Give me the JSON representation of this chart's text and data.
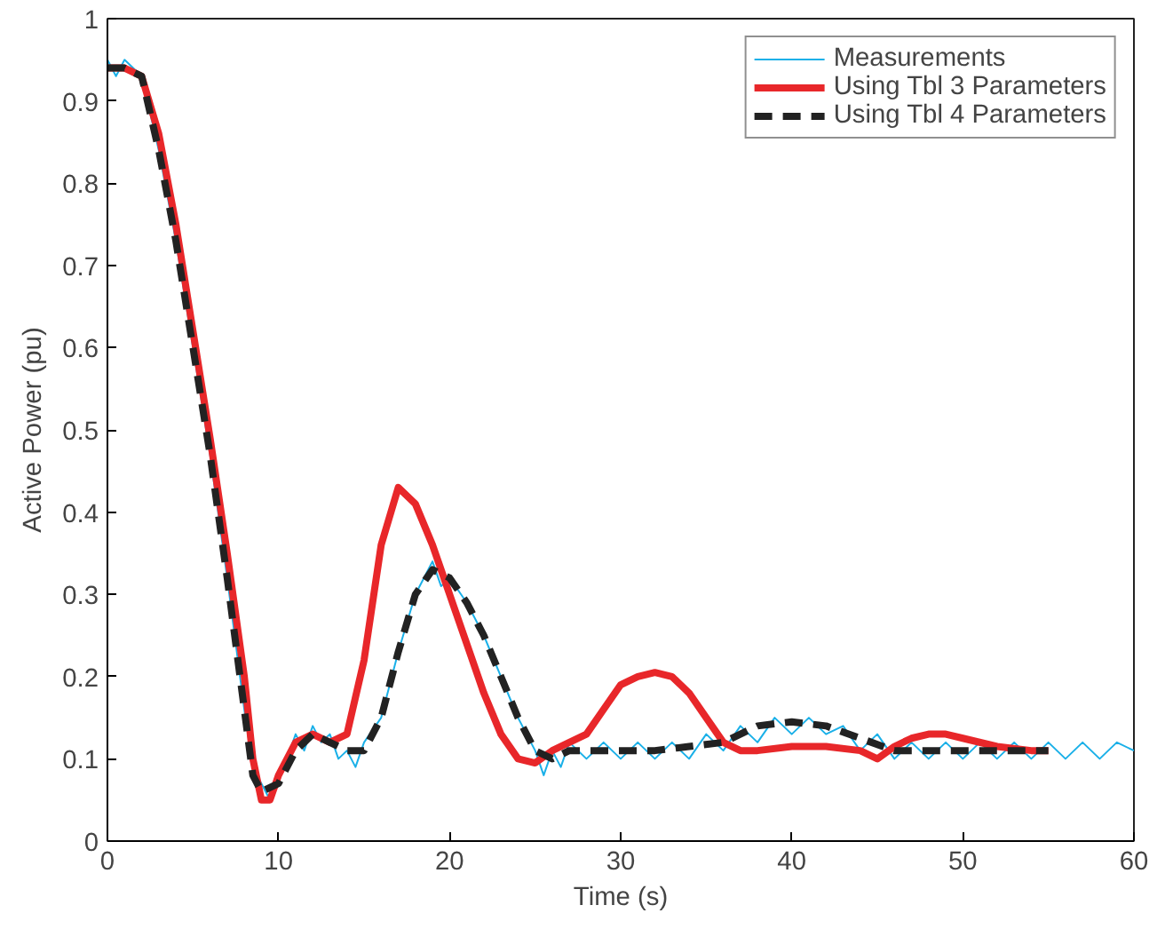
{
  "chart_data": {
    "type": "line",
    "xlabel": "Time (s)",
    "ylabel": "Active Power (pu)",
    "xlim": [
      0,
      60
    ],
    "ylim": [
      0,
      1
    ],
    "xticks": [
      0,
      10,
      20,
      30,
      40,
      50,
      60
    ],
    "yticks": [
      0,
      0.1,
      0.2,
      0.3,
      0.4,
      0.5,
      0.6,
      0.7,
      0.8,
      0.9,
      1
    ],
    "grid": false,
    "legend": "top right",
    "series": [
      {
        "name": "Measurements",
        "color": "#1ab0e8",
        "line_style": "solid",
        "x": [
          0,
          0.5,
          1,
          1.5,
          2,
          3,
          4,
          5,
          6,
          7,
          8,
          8.5,
          9,
          9.5,
          10,
          10.5,
          11,
          11.5,
          12,
          12.5,
          13,
          13.5,
          14,
          14.5,
          15,
          16,
          17,
          18,
          18.5,
          19,
          19.5,
          20,
          21,
          22,
          23,
          24,
          25,
          25.5,
          26,
          26.5,
          27,
          28,
          29,
          30,
          31,
          32,
          33,
          34,
          35,
          36,
          37,
          38,
          39,
          40,
          41,
          42,
          43,
          44,
          45,
          46,
          47,
          48,
          49,
          50,
          51,
          52,
          53,
          54,
          55,
          56,
          57,
          58,
          59,
          60
        ],
        "values": [
          0.95,
          0.93,
          0.95,
          0.94,
          0.93,
          0.84,
          0.73,
          0.6,
          0.47,
          0.32,
          0.16,
          0.09,
          0.07,
          0.05,
          0.08,
          0.1,
          0.13,
          0.11,
          0.14,
          0.12,
          0.13,
          0.1,
          0.11,
          0.09,
          0.12,
          0.15,
          0.23,
          0.3,
          0.32,
          0.34,
          0.31,
          0.32,
          0.29,
          0.25,
          0.2,
          0.15,
          0.11,
          0.08,
          0.11,
          0.09,
          0.12,
          0.1,
          0.12,
          0.1,
          0.12,
          0.1,
          0.12,
          0.1,
          0.13,
          0.11,
          0.14,
          0.12,
          0.15,
          0.13,
          0.15,
          0.13,
          0.14,
          0.11,
          0.13,
          0.1,
          0.12,
          0.1,
          0.12,
          0.1,
          0.12,
          0.1,
          0.12,
          0.1,
          0.12,
          0.1,
          0.12,
          0.1,
          0.12,
          0.11
        ]
      },
      {
        "name": "Using Tbl 3 Parameters",
        "color": "#e8272a",
        "line_style": "solid",
        "x": [
          0,
          1,
          2,
          3,
          4,
          5,
          6,
          7,
          8,
          8.5,
          9,
          9.5,
          10,
          11,
          12,
          13,
          14,
          15,
          16,
          17,
          18,
          19,
          20,
          21,
          22,
          23,
          24,
          25,
          26,
          27,
          28,
          29,
          30,
          31,
          32,
          33,
          34,
          35,
          36,
          37,
          38,
          40,
          42,
          44,
          45,
          46,
          47,
          48,
          49,
          50,
          52,
          54,
          55
        ],
        "values": [
          0.94,
          0.94,
          0.93,
          0.86,
          0.75,
          0.62,
          0.49,
          0.35,
          0.2,
          0.1,
          0.05,
          0.05,
          0.08,
          0.12,
          0.13,
          0.12,
          0.13,
          0.22,
          0.36,
          0.43,
          0.41,
          0.36,
          0.3,
          0.24,
          0.18,
          0.13,
          0.1,
          0.095,
          0.11,
          0.12,
          0.13,
          0.16,
          0.19,
          0.2,
          0.205,
          0.2,
          0.18,
          0.15,
          0.12,
          0.11,
          0.11,
          0.115,
          0.115,
          0.11,
          0.1,
          0.115,
          0.125,
          0.13,
          0.13,
          0.125,
          0.115,
          0.11,
          0.11
        ]
      },
      {
        "name": "Using Tbl 4 Parameters",
        "color": "#222222",
        "line_style": "dashed",
        "x": [
          0,
          1,
          2,
          3,
          4,
          5,
          6,
          7,
          8,
          8.5,
          9,
          10,
          11,
          12,
          13,
          14,
          15,
          16,
          17,
          18,
          19,
          20,
          21,
          22,
          23,
          24,
          25,
          26,
          27,
          28,
          30,
          32,
          34,
          36,
          38,
          40,
          42,
          44,
          46,
          48,
          50,
          52,
          55
        ],
        "values": [
          0.94,
          0.94,
          0.93,
          0.84,
          0.73,
          0.6,
          0.47,
          0.32,
          0.16,
          0.08,
          0.06,
          0.07,
          0.11,
          0.13,
          0.12,
          0.11,
          0.11,
          0.15,
          0.23,
          0.3,
          0.33,
          0.32,
          0.29,
          0.25,
          0.2,
          0.15,
          0.11,
          0.1,
          0.11,
          0.11,
          0.11,
          0.11,
          0.115,
          0.12,
          0.14,
          0.145,
          0.14,
          0.125,
          0.11,
          0.11,
          0.11,
          0.11,
          0.11
        ]
      }
    ]
  }
}
